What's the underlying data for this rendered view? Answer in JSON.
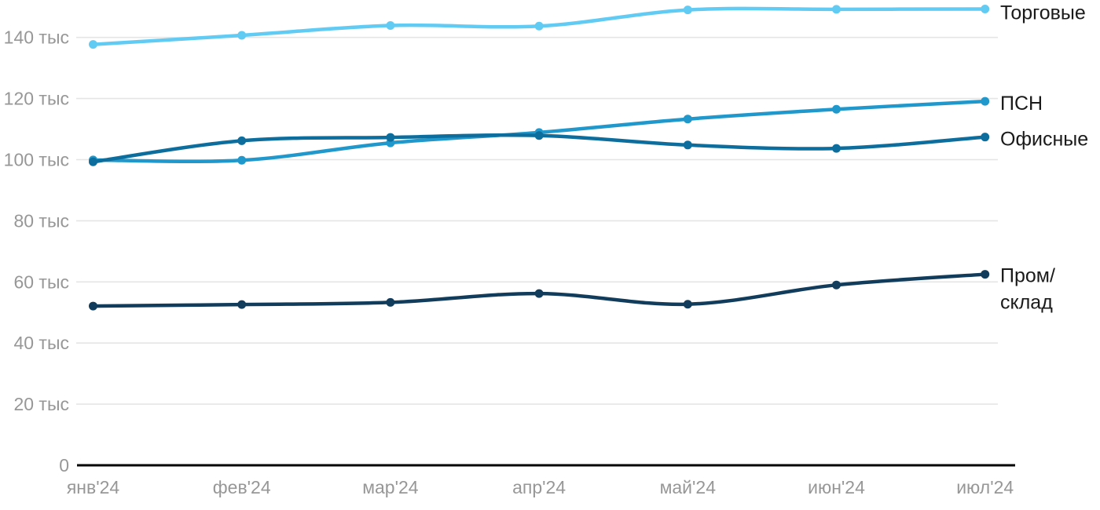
{
  "chart_data": {
    "type": "line",
    "title": "",
    "xlabel": "",
    "ylabel": "",
    "unit": "тыс",
    "grid": "horizontal",
    "legend_position": "right-of-line-end",
    "x_categories": [
      "янв'24",
      "фев'24",
      "мар'24",
      "апр'24",
      "май'24",
      "июн'24",
      "июл'24"
    ],
    "ylim": [
      0,
      152
    ],
    "y_ticks": [
      {
        "value": 0,
        "label": "0"
      },
      {
        "value": 20,
        "label": "20 тыс"
      },
      {
        "value": 40,
        "label": "40 тыс"
      },
      {
        "value": 60,
        "label": "60 тыс"
      },
      {
        "value": 80,
        "label": "80 тыс"
      },
      {
        "value": 100,
        "label": "100 тыс"
      },
      {
        "value": 120,
        "label": "120 тыс"
      },
      {
        "value": 140,
        "label": "140 тыс"
      }
    ],
    "series": [
      {
        "name": "Торговые",
        "slug": "torgovye",
        "color": "#62CBF4",
        "label_lines": [
          "Торговые"
        ],
        "values": [
          137.7,
          140.7,
          143.9,
          143.7,
          149.0,
          149.2,
          149.3
        ]
      },
      {
        "name": "ПСН",
        "slug": "psn",
        "color": "#2098CB",
        "label_lines": [
          "ПСН"
        ],
        "values": [
          99.9,
          99.8,
          105.5,
          108.9,
          113.3,
          116.5,
          119.1
        ]
      },
      {
        "name": "Офисные",
        "slug": "ofisnye",
        "color": "#0D6E9E",
        "label_lines": [
          "Офисные"
        ],
        "values": [
          99.3,
          106.2,
          107.3,
          107.9,
          104.8,
          103.7,
          107.4
        ]
      },
      {
        "name": "Пром/склад",
        "slug": "prom-sklad",
        "color": "#113C5B",
        "label_lines": [
          "Пром/",
          "склад"
        ],
        "values": [
          52.1,
          52.6,
          53.3,
          56.2,
          52.7,
          59.0,
          62.5
        ]
      }
    ]
  },
  "colors": {
    "background": "#ffffff",
    "grid_line": "#e5e5e5",
    "axis_line": "#000000",
    "tick_text": "#979797",
    "series_label_text": "#1a1a1a"
  }
}
